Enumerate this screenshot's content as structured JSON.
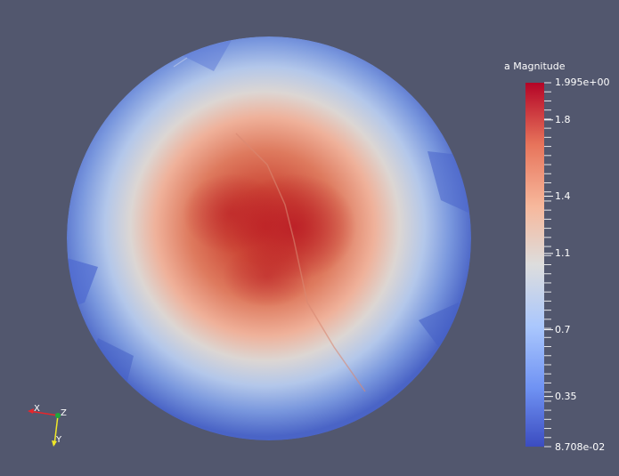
{
  "colorbar": {
    "title": "a Magnitude",
    "max_label": "1.995e+00",
    "min_label": "8.708e-02",
    "ticks": [
      {
        "label": "1.8",
        "value": 1.8
      },
      {
        "label": "1.4",
        "value": 1.4
      },
      {
        "label": "1.1",
        "value": 1.1
      },
      {
        "label": "0.7",
        "value": 0.7
      },
      {
        "label": "0.35",
        "value": 0.35
      }
    ],
    "range": [
      0.08708,
      1.995
    ],
    "colormap": [
      "#3b4cc0",
      "#6f92f3",
      "#aac7fd",
      "#dddddd",
      "#f7b89c",
      "#e7745b",
      "#b40426"
    ]
  },
  "axes_triad": {
    "x_label": "X",
    "y_label": "Y",
    "z_label": "Z",
    "x_color": "#e8262b",
    "y_color": "#f0e828",
    "z_color": "#1fa83a"
  },
  "colors": {
    "background": "#52576e"
  }
}
